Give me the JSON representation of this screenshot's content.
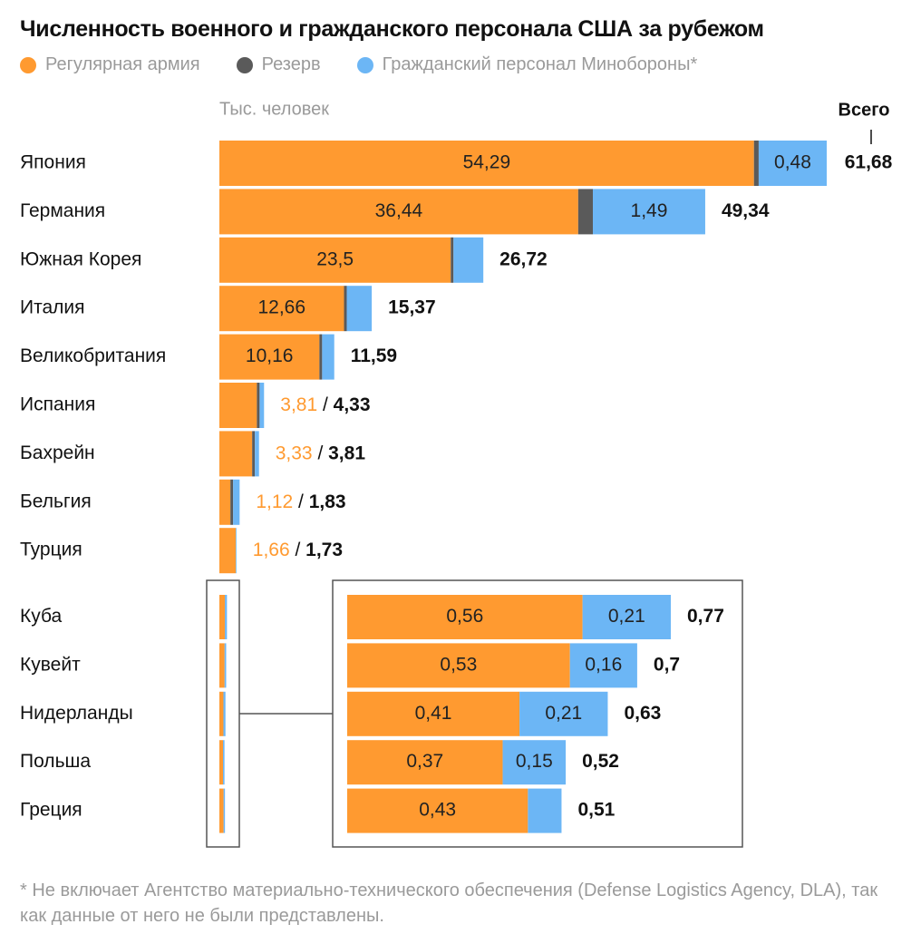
{
  "title": "Численность военного и гражданского персонала США за рубежом",
  "colors": {
    "regular": "#FF9A30",
    "reserve": "#5A5A5A",
    "civilian": "#6CB6F5",
    "grey_text": "#9A9A9A",
    "frame": "#555555"
  },
  "chart_data": {
    "type": "bar",
    "orientation": "horizontal",
    "stacked": true,
    "unit": "Тыс. человек",
    "total_header": "Всего",
    "legend_position": "top",
    "series": [
      {
        "name": "Регулярная армия",
        "key": "regular"
      },
      {
        "name": "Резерв",
        "key": "reserve"
      },
      {
        "name": "Гражданский персонал Минобороны*",
        "key": "civilian"
      }
    ],
    "main_axis_max": 61.68,
    "rows": [
      {
        "country": "Япония",
        "regular": 54.29,
        "reserve": 0.48,
        "civilian": 6.91,
        "total": 61.68,
        "regular_label": "54,29",
        "civilian_label": "0,48",
        "total_label": "61,68",
        "style": "inside"
      },
      {
        "country": "Германия",
        "regular": 36.44,
        "reserve": 1.49,
        "civilian": 11.41,
        "total": 49.34,
        "regular_label": "36,44",
        "civilian_label": "1,49",
        "total_label": "49,34",
        "style": "inside"
      },
      {
        "country": "Южная Корея",
        "regular": 23.5,
        "reserve": 0.19,
        "civilian": 3.03,
        "total": 26.72,
        "regular_label": "23,5",
        "total_label": "26,72",
        "style": "inside"
      },
      {
        "country": "Италия",
        "regular": 12.66,
        "reserve": 0.17,
        "civilian": 2.54,
        "total": 15.37,
        "regular_label": "12,66",
        "total_label": "15,37",
        "style": "inside"
      },
      {
        "country": "Великобритания",
        "regular": 10.16,
        "reserve": 0.2,
        "civilian": 1.23,
        "total": 11.59,
        "regular_label": "10,16",
        "total_label": "11,59",
        "style": "inside"
      },
      {
        "country": "Испания",
        "regular": 3.81,
        "reserve": 0.07,
        "civilian": 0.45,
        "total": 4.33,
        "regular_label": "3,81",
        "total_label": "4,33",
        "style": "outside"
      },
      {
        "country": "Бахрейн",
        "regular": 3.33,
        "reserve": 0.06,
        "civilian": 0.42,
        "total": 3.81,
        "regular_label": "3,33",
        "total_label": "3,81",
        "style": "outside"
      },
      {
        "country": "Бельгия",
        "regular": 1.12,
        "reserve": 0.05,
        "civilian": 0.66,
        "total": 1.83,
        "regular_label": "1,12",
        "total_label": "1,83",
        "style": "outside"
      },
      {
        "country": "Турция",
        "regular": 1.66,
        "reserve": 0.0,
        "civilian": 0.07,
        "total": 1.73,
        "regular_label": "1,66",
        "total_label": "1,73",
        "style": "outside"
      }
    ],
    "zoom_axis_max": 0.77,
    "zoom_rows": [
      {
        "country": "Куба",
        "regular": 0.56,
        "reserve": 0.0,
        "civilian": 0.21,
        "total": 0.77,
        "regular_label": "0,56",
        "civilian_label": "0,21",
        "total_label": "0,77"
      },
      {
        "country": "Кувейт",
        "regular": 0.53,
        "reserve": 0.0,
        "civilian": 0.16,
        "total": 0.7,
        "regular_label": "0,53",
        "civilian_label": "0,16",
        "total_label": "0,7"
      },
      {
        "country": "Нидерланды",
        "regular": 0.41,
        "reserve": 0.0,
        "civilian": 0.21,
        "total": 0.63,
        "regular_label": "0,41",
        "civilian_label": "0,21",
        "total_label": "0,63"
      },
      {
        "country": "Польша",
        "regular": 0.37,
        "reserve": 0.0,
        "civilian": 0.15,
        "total": 0.52,
        "regular_label": "0,37",
        "civilian_label": "0,15",
        "total_label": "0,52"
      },
      {
        "country": "Греция",
        "regular": 0.43,
        "reserve": 0.0,
        "civilian": 0.08,
        "total": 0.51,
        "regular_label": "0,43",
        "total_label": "0,51"
      }
    ]
  },
  "footnote": "* Не включает Агентство материально-технического обеспечения (Defense Logistics Agency, DLA), так как данные от него не были представлены."
}
